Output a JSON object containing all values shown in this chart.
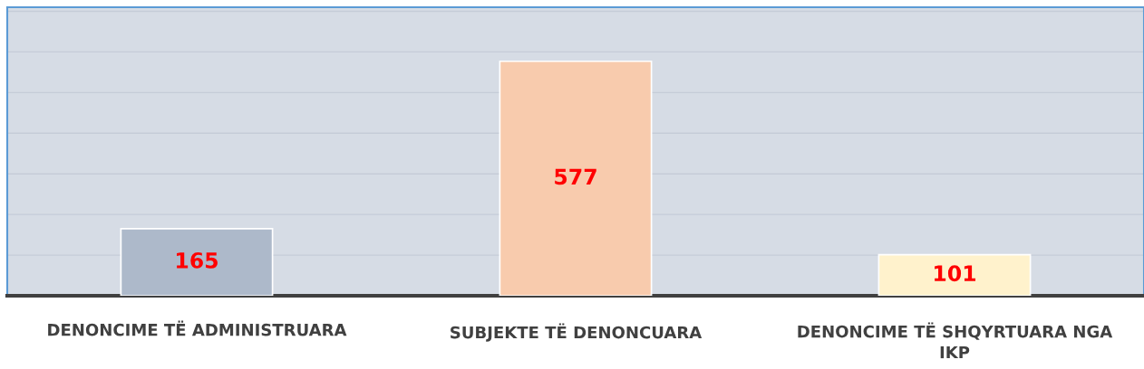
{
  "chart_data": {
    "type": "bar",
    "categories": [
      "DENONCIME TË ADMINISTRUARA",
      "SUBJEKTE TË DENONCUARA",
      "DENONCIME TË SHQYRTUARA NGA IKP"
    ],
    "values": [
      165,
      577,
      101
    ],
    "colors": [
      "#adb9ca",
      "#f8cbad",
      "#fff2cc"
    ],
    "data_labels": true,
    "ylim": [
      0,
      710
    ],
    "yticks": [
      {
        "value": 0,
        "label": null
      },
      {
        "value": 100,
        "label": null
      },
      {
        "value": 200,
        "label": null
      },
      {
        "value": 300,
        "label": null
      },
      {
        "value": 400,
        "label": null
      },
      {
        "value": 500,
        "label": null
      },
      {
        "value": 600,
        "label": null
      },
      {
        "value": 700,
        "label": null
      }
    ],
    "grid": "y",
    "tick_labels": "x",
    "legend": false
  }
}
